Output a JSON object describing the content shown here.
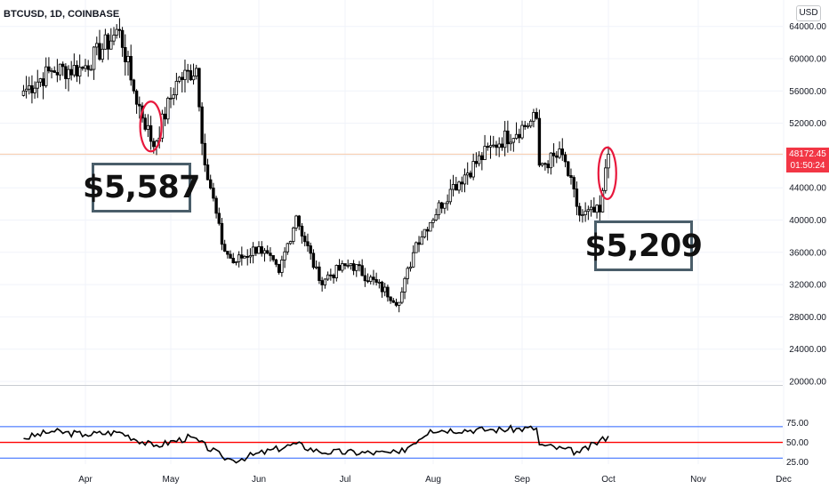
{
  "symbol_label": "BTCUSD, 1D, COINBASE",
  "currency": "USD",
  "current_price": "48172.45",
  "countdown": "01:50:24",
  "annotations": {
    "left_box": "$5,587",
    "right_box": "$5,209"
  },
  "colors": {
    "rsi_line": "#000000",
    "rsi_midline": "#ff0000",
    "rsi_bands": "#2962ff",
    "current_price_line": "#f7c9a8",
    "highlight_ellipse": "#e8183c",
    "annotation_border": "#4a5e6a",
    "price_badge": "#f23645"
  },
  "chart_data": [
    {
      "type": "candlestick",
      "yaxis_ticks": [
        "64000.00",
        "60000.00",
        "56000.00",
        "52000.00",
        "48000.00",
        "44000.00",
        "40000.00",
        "36000.00",
        "32000.00",
        "28000.00",
        "24000.00",
        "20000.00"
      ],
      "y_tick_values": [
        64000,
        60000,
        56000,
        52000,
        48000,
        44000,
        40000,
        36000,
        32000,
        28000,
        24000,
        20000
      ],
      "xaxis_ticks": [
        "Apr",
        "May",
        "Jun",
        "Jul",
        "Aug",
        "Sep",
        "Oct",
        "Nov",
        "Dec"
      ],
      "ylim": [
        18000,
        67000
      ],
      "current_price": 48172.45,
      "series": [
        {
          "date": "2021-03-10",
          "close": 56000
        },
        {
          "date": "2021-03-20",
          "close": 58500
        },
        {
          "date": "2021-03-31",
          "close": 58800
        },
        {
          "date": "2021-04-13",
          "close": 63500
        },
        {
          "date": "2021-04-18",
          "close": 56000
        },
        {
          "date": "2021-04-25",
          "close": 49100
        },
        {
          "date": "2021-05-03",
          "close": 57200
        },
        {
          "date": "2021-05-10",
          "close": 58800
        },
        {
          "date": "2021-05-12",
          "close": 49500
        },
        {
          "date": "2021-05-19",
          "close": 37000
        },
        {
          "date": "2021-05-23",
          "close": 34700
        },
        {
          "date": "2021-06-01",
          "close": 36700
        },
        {
          "date": "2021-06-08",
          "close": 33500
        },
        {
          "date": "2021-06-14",
          "close": 40500
        },
        {
          "date": "2021-06-22",
          "close": 32500
        },
        {
          "date": "2021-07-03",
          "close": 34600
        },
        {
          "date": "2021-07-20",
          "close": 29800
        },
        {
          "date": "2021-07-26",
          "close": 37200
        },
        {
          "date": "2021-08-07",
          "close": 43800
        },
        {
          "date": "2021-08-22",
          "close": 49300
        },
        {
          "date": "2021-09-06",
          "close": 52600
        },
        {
          "date": "2021-09-07",
          "close": 46800
        },
        {
          "date": "2021-09-15",
          "close": 48100
        },
        {
          "date": "2021-09-21",
          "close": 40600
        },
        {
          "date": "2021-09-28",
          "close": 41000
        },
        {
          "date": "2021-10-01",
          "close": 48172
        }
      ]
    },
    {
      "type": "line",
      "indicator": "oscillator",
      "yaxis_ticks": [
        "75.00",
        "50.00",
        "25.00"
      ],
      "y_tick_values": [
        75,
        50,
        25
      ],
      "ylim": [
        20,
        80
      ],
      "bands": [
        70,
        50,
        30
      ],
      "series": [
        {
          "date": "2021-03-10",
          "value": 55
        },
        {
          "date": "2021-03-20",
          "value": 64
        },
        {
          "date": "2021-04-01",
          "value": 60
        },
        {
          "date": "2021-04-13",
          "value": 63
        },
        {
          "date": "2021-04-25",
          "value": 45
        },
        {
          "date": "2021-05-08",
          "value": 57
        },
        {
          "date": "2021-05-19",
          "value": 32
        },
        {
          "date": "2021-05-23",
          "value": 27
        },
        {
          "date": "2021-06-14",
          "value": 48
        },
        {
          "date": "2021-06-22",
          "value": 38
        },
        {
          "date": "2021-07-20",
          "value": 36
        },
        {
          "date": "2021-07-31",
          "value": 66
        },
        {
          "date": "2021-08-22",
          "value": 66
        },
        {
          "date": "2021-09-06",
          "value": 68
        },
        {
          "date": "2021-09-07",
          "value": 47
        },
        {
          "date": "2021-09-21",
          "value": 37
        },
        {
          "date": "2021-10-01",
          "value": 58
        }
      ]
    }
  ]
}
